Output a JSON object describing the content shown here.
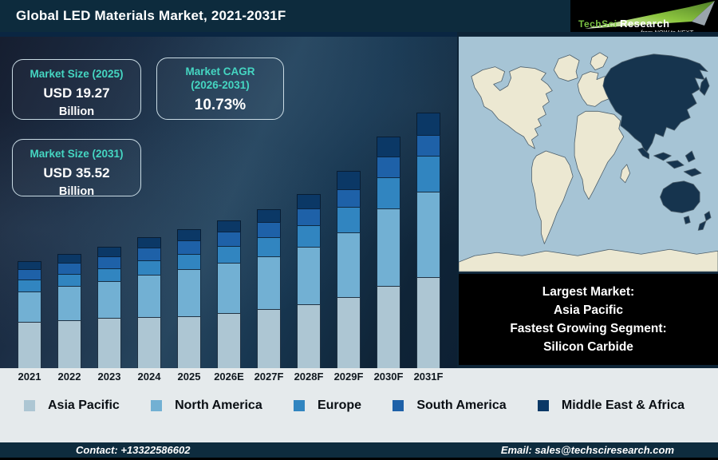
{
  "header": {
    "title": "Global LED Materials Market, 2021-2031F",
    "logo": {
      "brand_a": "TechSci",
      "brand_b": "Research",
      "tagline": "from NOW to NEXT"
    }
  },
  "stat_boxes": {
    "size_2025": {
      "label": "Market Size (2025)",
      "value": "USD 19.27",
      "unit": "Billion"
    },
    "cagr": {
      "label_line1": "Market CAGR",
      "label_line2": "(2026-2031)",
      "value": "10.73%"
    },
    "size_2031": {
      "label": "Market Size (2031)",
      "value": "USD 35.52",
      "unit": "Billion"
    }
  },
  "chart_data": {
    "type": "bar",
    "stacked": true,
    "title": "Global LED Materials Market, 2021-2031F",
    "unit": "USD Billion",
    "categories": [
      "2021",
      "2022",
      "2023",
      "2024",
      "2025",
      "2026E",
      "2027F",
      "2028F",
      "2029F",
      "2030F",
      "2031F"
    ],
    "series": [
      {
        "name": "Asia Pacific",
        "color": "#adc6d3",
        "values": [
          6.4,
          6.7,
          7.0,
          7.1,
          7.2,
          7.7,
          8.2,
          8.9,
          9.9,
          11.5,
          12.7
        ]
      },
      {
        "name": "North America",
        "color": "#72b0d3",
        "values": [
          4.3,
          4.7,
          5.1,
          5.9,
          6.6,
          7.0,
          7.4,
          8.0,
          9.0,
          10.7,
          11.9
        ]
      },
      {
        "name": "Europe",
        "color": "#3185c0",
        "values": [
          1.6,
          1.7,
          1.8,
          2.0,
          2.1,
          2.3,
          2.6,
          3.0,
          3.5,
          4.4,
          5.0
        ]
      },
      {
        "name": "South America",
        "color": "#1e61a8",
        "values": [
          1.5,
          1.6,
          1.7,
          1.8,
          1.9,
          2.0,
          2.1,
          2.3,
          2.5,
          2.8,
          2.9
        ]
      },
      {
        "name": "Middle East & Africa",
        "color": "#0b3866",
        "values": [
          1.1,
          1.2,
          1.3,
          1.4,
          1.5,
          1.6,
          1.8,
          2.0,
          2.5,
          2.8,
          3.02
        ]
      }
    ],
    "totals": [
      14.9,
      15.9,
      16.9,
      18.2,
      19.3,
      20.6,
      22.1,
      24.2,
      27.4,
      32.2,
      35.52
    ],
    "ylim": [
      0,
      37
    ],
    "axis_labels_visible": "x-only",
    "grid": false,
    "legend_position": "bottom"
  },
  "map": {
    "highlighted_region": "Asia Pacific"
  },
  "highlight_box": {
    "lines": [
      "Largest Market:",
      "Asia Pacific",
      "Fastest Growing Segment:",
      "Silicon Carbide"
    ]
  },
  "footer": {
    "contact": "Contact: +13322586602",
    "email": "Email: sales@techsciresearch.com"
  },
  "colors": {
    "header_bg": "#0d2b3d",
    "accent_teal": "#45d6c2",
    "strip_bg": "#e5eaec",
    "footer_bg": "#0e2c3e",
    "map_ocean": "#a6c4d5",
    "map_land": "#ece8d2",
    "map_highlight": "#16344e",
    "logo_green": "#7ac143",
    "black": "#000000"
  }
}
